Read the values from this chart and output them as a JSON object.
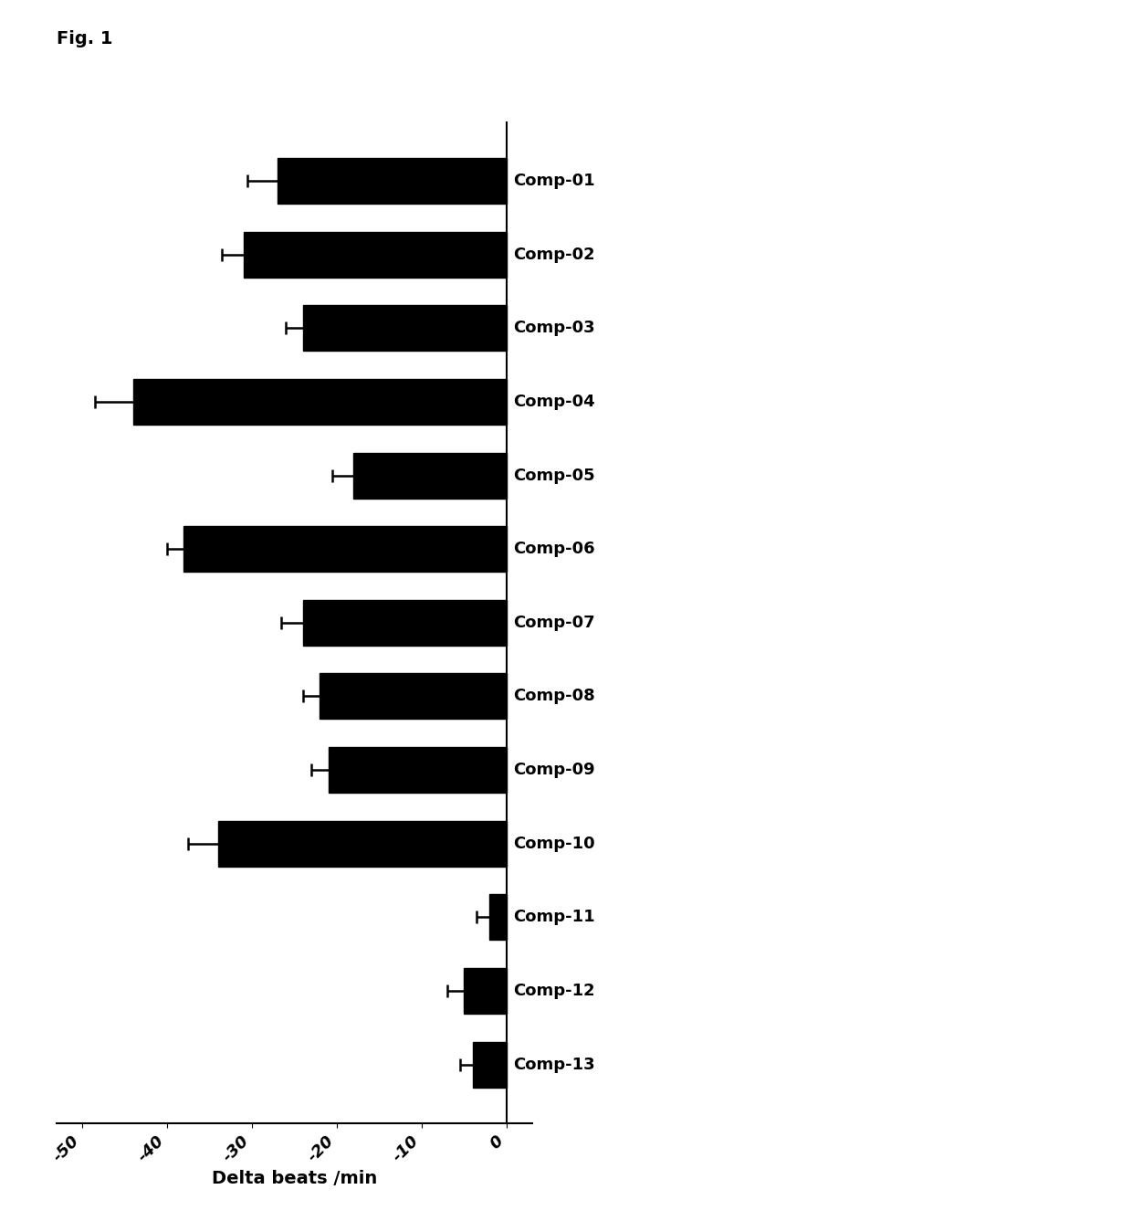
{
  "categories": [
    "Comp-01",
    "Comp-02",
    "Comp-03",
    "Comp-04",
    "Comp-05",
    "Comp-06",
    "Comp-07",
    "Comp-08",
    "Comp-09",
    "Comp-10",
    "Comp-11",
    "Comp-12",
    "Comp-13"
  ],
  "values": [
    -27,
    -31,
    -24,
    -44,
    -18,
    -38,
    -24,
    -22,
    -21,
    -34,
    -2,
    -5,
    -4
  ],
  "errors": [
    3.5,
    2.5,
    2.0,
    4.5,
    2.5,
    2.0,
    2.5,
    2.0,
    2.0,
    3.5,
    1.5,
    2.0,
    1.5
  ],
  "bar_color": "#000000",
  "bar_height": 0.62,
  "xlabel": "Delta beats /min",
  "xlim": [
    -53,
    3
  ],
  "xticks": [
    -50,
    -40,
    -30,
    -20,
    -10,
    0
  ],
  "xticklabels": [
    "-50",
    "-40",
    "-30",
    "-20",
    "-10",
    "0"
  ],
  "title": "Fig. 1",
  "xlabel_fontsize": 14,
  "tick_fontsize": 13,
  "label_fontsize": 13,
  "background_color": "#ffffff"
}
